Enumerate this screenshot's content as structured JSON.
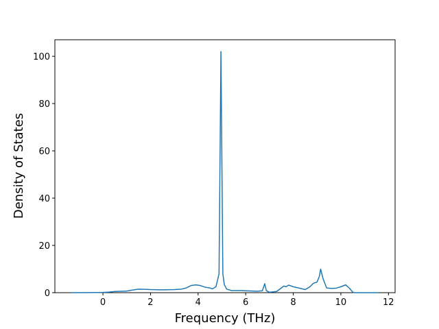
{
  "chart_data": {
    "type": "line",
    "x_label": "Frequency (THz)",
    "y_label": "Density of States",
    "x": [
      -1.35,
      0,
      0.2,
      0.5,
      1.0,
      1.3,
      1.5,
      1.8,
      2.0,
      2.5,
      3.0,
      3.3,
      3.5,
      3.7,
      3.9,
      4.1,
      4.3,
      4.5,
      4.6,
      4.75,
      4.88,
      4.96,
      5.04,
      5.1,
      5.2,
      5.4,
      5.8,
      6.0,
      6.5,
      6.7,
      6.8,
      6.87,
      7.0,
      7.3,
      7.5,
      7.6,
      7.7,
      7.8,
      8.0,
      8.3,
      8.5,
      8.7,
      8.85,
      9.0,
      9.1,
      9.15,
      9.25,
      9.4,
      9.6,
      9.8,
      10.0,
      10.2,
      10.35,
      10.5,
      10.6,
      11.6
    ],
    "series": [
      {
        "color": "#1f77b4",
        "values": [
          0,
          0.1,
          0.2,
          0.5,
          0.7,
          1.2,
          1.5,
          1.4,
          1.3,
          1.2,
          1.3,
          1.5,
          2,
          3,
          3.3,
          3,
          2.3,
          2,
          1.6,
          2.5,
          8,
          102,
          8,
          3.5,
          1.5,
          0.9,
          0.9,
          0.8,
          0.6,
          0.8,
          3.8,
          0.8,
          0.2,
          0.5,
          2,
          2.8,
          2.5,
          3.2,
          2.5,
          1.8,
          1.3,
          2.5,
          4,
          4.5,
          7,
          10,
          6,
          2,
          1.8,
          1.9,
          2.5,
          3.3,
          2,
          0.2,
          0,
          0
        ]
      }
    ],
    "xlim": [
      -2.02,
      12.28
    ],
    "ylim": [
      0,
      107
    ],
    "xticks": [
      0,
      2,
      4,
      6,
      8,
      10,
      12
    ],
    "yticks": [
      0,
      20,
      40,
      60,
      80,
      100
    ]
  }
}
